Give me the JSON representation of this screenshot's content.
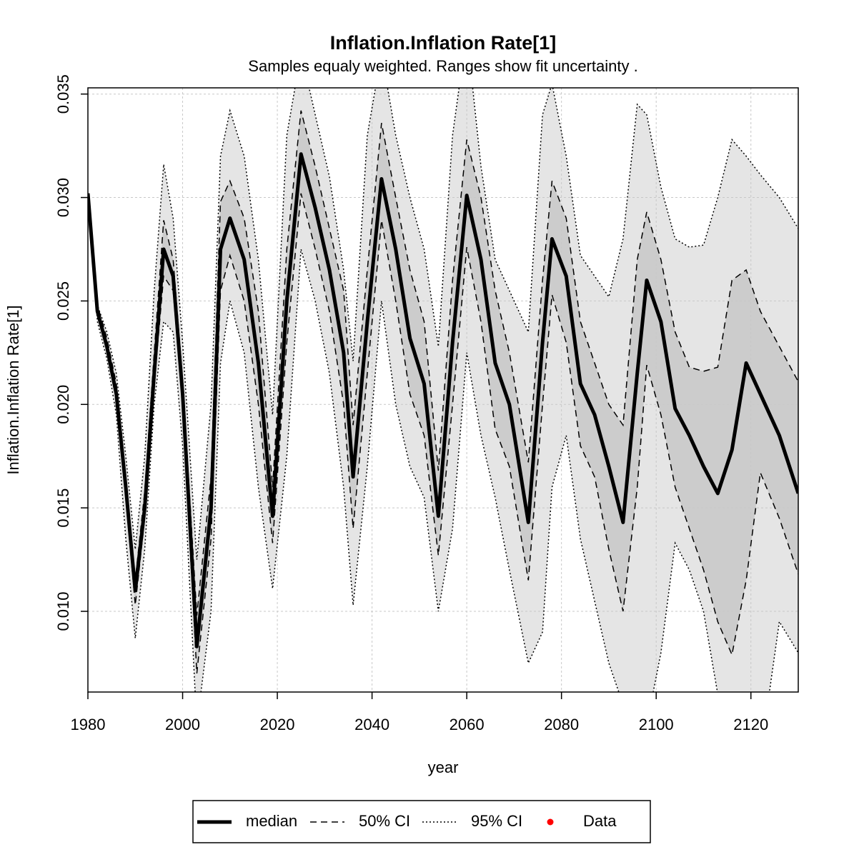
{
  "chart_data": {
    "type": "line",
    "title": "Inflation.Inflation Rate[1]",
    "subtitle": "Samples equaly weighted. Ranges show  fit uncertainty .",
    "xlabel": "year",
    "ylabel": "Inflation.Inflation Rate[1]",
    "x": [
      1980,
      1982,
      1984,
      1986,
      1988,
      1990,
      1992,
      1994,
      1996,
      1998,
      2000,
      2003,
      2006,
      2008,
      2010,
      2013,
      2016,
      2019,
      2022,
      2025,
      2028,
      2031,
      2034,
      2036,
      2039,
      2042,
      2045,
      2048,
      2051,
      2054,
      2057,
      2060,
      2063,
      2066,
      2069,
      2073,
      2076,
      2078,
      2081,
      2084,
      2087,
      2090,
      2093,
      2096,
      2098,
      2101,
      2104,
      2107,
      2110,
      2113,
      2116,
      2119,
      2122,
      2126,
      2130
    ],
    "series": [
      {
        "name": "median",
        "color": "#000000",
        "values": [
          0.0302,
          0.0245,
          0.0228,
          0.0205,
          0.016,
          0.011,
          0.015,
          0.0215,
          0.0275,
          0.0262,
          0.0205,
          0.0083,
          0.015,
          0.0275,
          0.029,
          0.027,
          0.022,
          0.0146,
          0.025,
          0.0321,
          0.0295,
          0.0265,
          0.0225,
          0.0165,
          0.024,
          0.0309,
          0.0275,
          0.0232,
          0.021,
          0.0146,
          0.023,
          0.0301,
          0.027,
          0.022,
          0.02,
          0.0143,
          0.023,
          0.028,
          0.0262,
          0.021,
          0.0195,
          0.017,
          0.0143,
          0.0215,
          0.026,
          0.024,
          0.0198,
          0.0185,
          0.017,
          0.0157,
          0.0178,
          0.022,
          0.0205,
          0.0185,
          0.0157
        ]
      },
      {
        "name": "50% CI",
        "color": "#cccccc",
        "lower": [
          0.0302,
          0.0243,
          0.0226,
          0.0203,
          0.0155,
          0.0103,
          0.0145,
          0.021,
          0.0262,
          0.0255,
          0.02,
          0.007,
          0.0135,
          0.0255,
          0.0272,
          0.025,
          0.02,
          0.0133,
          0.023,
          0.0302,
          0.0275,
          0.0245,
          0.02,
          0.014,
          0.0215,
          0.0289,
          0.025,
          0.0205,
          0.0185,
          0.0127,
          0.02,
          0.0276,
          0.024,
          0.0188,
          0.017,
          0.0115,
          0.02,
          0.0253,
          0.023,
          0.018,
          0.0165,
          0.013,
          0.01,
          0.016,
          0.0219,
          0.0195,
          0.016,
          0.014,
          0.012,
          0.0095,
          0.0079,
          0.0115,
          0.0167,
          0.0145,
          0.0118
        ],
        "upper": [
          0.0302,
          0.0248,
          0.0232,
          0.021,
          0.0165,
          0.0115,
          0.0158,
          0.0225,
          0.0289,
          0.027,
          0.0212,
          0.0098,
          0.0165,
          0.0298,
          0.0308,
          0.029,
          0.0245,
          0.016,
          0.0275,
          0.0342,
          0.0315,
          0.0285,
          0.0255,
          0.019,
          0.0265,
          0.0336,
          0.03,
          0.0265,
          0.024,
          0.0168,
          0.026,
          0.0328,
          0.03,
          0.0255,
          0.0225,
          0.0172,
          0.026,
          0.0308,
          0.029,
          0.024,
          0.022,
          0.02,
          0.019,
          0.027,
          0.0293,
          0.027,
          0.0235,
          0.0218,
          0.0216,
          0.0218,
          0.026,
          0.0265,
          0.0245,
          0.0228,
          0.0211
        ]
      },
      {
        "name": "95% CI",
        "color": "#e5e5e5",
        "lower": [
          0.0302,
          0.024,
          0.0222,
          0.0195,
          0.0135,
          0.0087,
          0.013,
          0.02,
          0.024,
          0.0235,
          0.018,
          0.0045,
          0.01,
          0.022,
          0.025,
          0.0225,
          0.016,
          0.0111,
          0.0175,
          0.0275,
          0.025,
          0.0215,
          0.016,
          0.0103,
          0.017,
          0.025,
          0.02,
          0.017,
          0.0155,
          0.01,
          0.014,
          0.0225,
          0.0185,
          0.0155,
          0.012,
          0.0075,
          0.009,
          0.016,
          0.0185,
          0.0135,
          0.0105,
          0.0075,
          0.0055,
          0.004,
          0.0045,
          0.008,
          0.0133,
          0.012,
          0.01,
          0.006,
          0.003,
          0.002,
          0.003,
          0.0095,
          0.008
        ],
        "upper": [
          0.0302,
          0.0248,
          0.0235,
          0.0215,
          0.0175,
          0.013,
          0.0175,
          0.0255,
          0.0316,
          0.029,
          0.023,
          0.0125,
          0.02,
          0.032,
          0.0342,
          0.032,
          0.027,
          0.0195,
          0.033,
          0.037,
          0.034,
          0.031,
          0.0265,
          0.0221,
          0.033,
          0.037,
          0.033,
          0.03,
          0.0275,
          0.0228,
          0.033,
          0.038,
          0.0315,
          0.027,
          0.0255,
          0.0235,
          0.034,
          0.0355,
          0.032,
          0.0272,
          0.0262,
          0.0252,
          0.028,
          0.0345,
          0.034,
          0.0305,
          0.028,
          0.0276,
          0.0277,
          0.03,
          0.0328,
          0.032,
          0.0311,
          0.03,
          0.0285
        ]
      }
    ],
    "legend_extra": [
      {
        "name": "Data",
        "color": "#ff0000"
      }
    ],
    "xlim": [
      1980,
      2130
    ],
    "xticks": [
      1980,
      2000,
      2020,
      2040,
      2060,
      2080,
      2100,
      2120
    ],
    "ylim": [
      0.0061,
      0.0353
    ],
    "yticks": [
      {
        "value": 0.01,
        "label": "0.010"
      },
      0.015,
      {
        "value": 0.02,
        "label": "0.020"
      },
      0.025,
      {
        "value": 0.03,
        "label": "0.030"
      },
      0.035
    ],
    "grid": true
  }
}
